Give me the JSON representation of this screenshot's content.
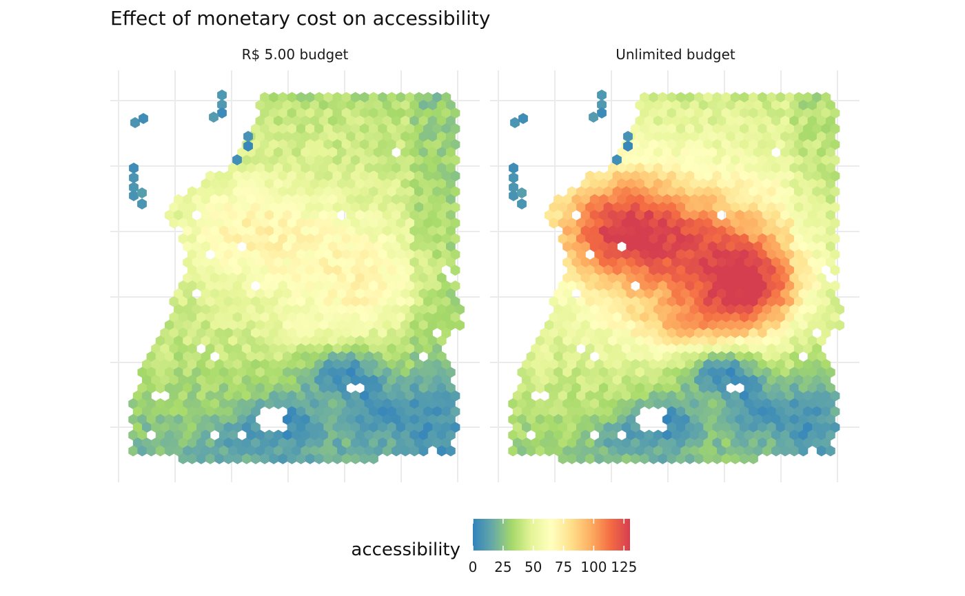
{
  "chart_data": {
    "type": "heatmap",
    "title": "Effect of monetary cost on accessibility",
    "panels": [
      {
        "name": "R$ 5.00 budget"
      },
      {
        "name": "Unlimited budget"
      }
    ],
    "legend": {
      "title": "accessibility",
      "placement": "bottom",
      "range": [
        0,
        130
      ],
      "ticks": [
        0,
        25,
        50,
        75,
        100,
        125
      ],
      "colors": [
        "#3182bd",
        "#66a9a7",
        "#a6d96a",
        "#e6f598",
        "#ffffbf",
        "#fee08b",
        "#fdae61",
        "#f46d43",
        "#d53e4f"
      ]
    },
    "grid": true
  }
}
